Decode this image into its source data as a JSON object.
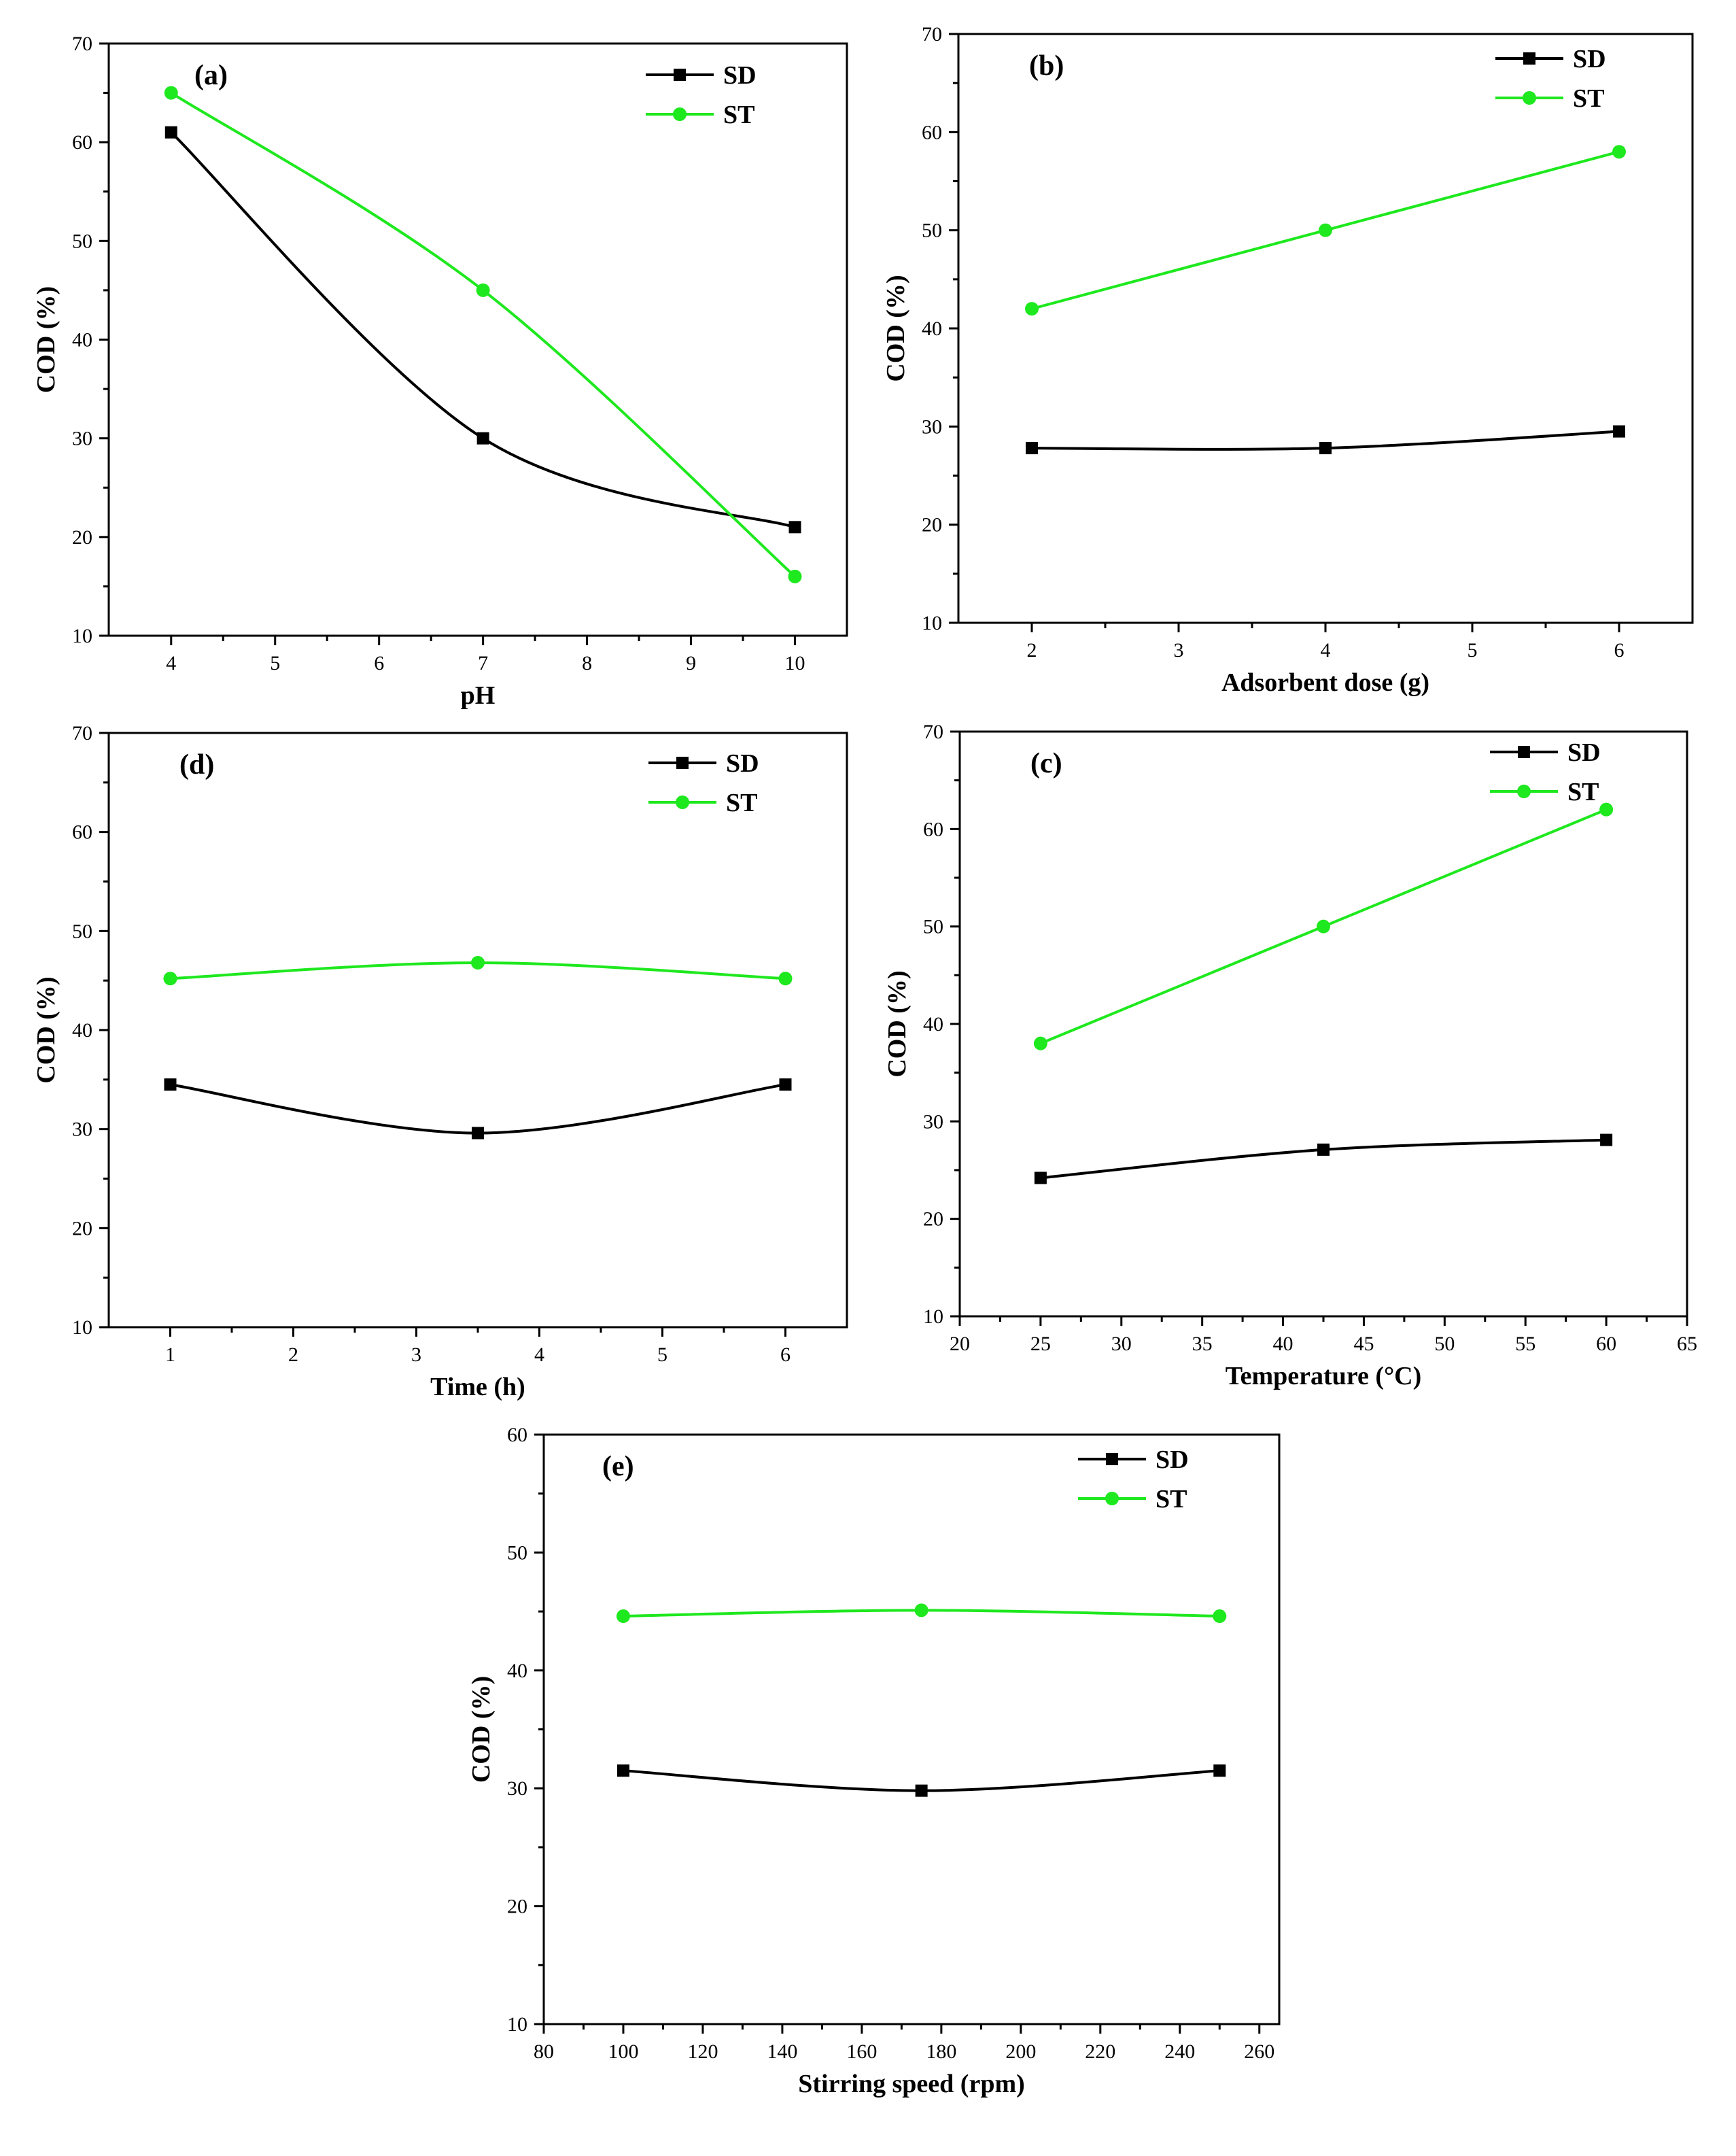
{
  "colors": {
    "sd": "#000000",
    "st": "#1ee81e",
    "axis": "#000000"
  },
  "chart_data": [
    {
      "panel": "(a)",
      "type": "line",
      "xlabel": "pH",
      "ylabel": "COD (%)",
      "xlim": [
        3.4,
        10.5
      ],
      "ylim": [
        10,
        70
      ],
      "xticks": [
        4,
        5,
        6,
        7,
        8,
        9,
        10
      ],
      "yticks": [
        10,
        20,
        30,
        40,
        50,
        60,
        70
      ],
      "x": [
        4,
        7,
        10
      ],
      "series": [
        {
          "name": "SD",
          "marker": "square",
          "values": [
            61,
            30,
            21
          ]
        },
        {
          "name": "ST",
          "marker": "circle",
          "values": [
            65,
            45,
            16
          ]
        }
      ],
      "legend": "top-right"
    },
    {
      "panel": "(b)",
      "type": "line",
      "xlabel": "Adsorbent dose (g)",
      "ylabel": "COD (%)",
      "xlim": [
        1.5,
        6.5
      ],
      "ylim": [
        10,
        70
      ],
      "xticks": [
        2,
        3,
        4,
        5,
        6
      ],
      "yticks": [
        10,
        20,
        30,
        40,
        50,
        60,
        70
      ],
      "x": [
        2,
        4,
        6
      ],
      "series": [
        {
          "name": "SD",
          "marker": "square",
          "values": [
            27.8,
            27.8,
            29.5
          ]
        },
        {
          "name": "ST",
          "marker": "circle",
          "values": [
            42,
            50,
            58
          ]
        }
      ],
      "legend": "top-right"
    },
    {
      "panel": "(d)",
      "type": "line",
      "xlabel": "Time (h)",
      "ylabel": "COD (%)",
      "xlim": [
        0.5,
        6.5
      ],
      "ylim": [
        10,
        70
      ],
      "xticks": [
        1,
        2,
        3,
        4,
        5,
        6
      ],
      "yticks": [
        10,
        20,
        30,
        40,
        50,
        60,
        70
      ],
      "x": [
        1,
        3.5,
        6
      ],
      "series": [
        {
          "name": "SD",
          "marker": "square",
          "values": [
            34.5,
            29.6,
            34.5
          ]
        },
        {
          "name": "ST",
          "marker": "circle",
          "values": [
            45.2,
            46.8,
            45.2
          ]
        }
      ],
      "legend": "top-right"
    },
    {
      "panel": "(c)",
      "type": "line",
      "xlabel": "Temperature (°C)",
      "ylabel": "COD (%)",
      "xlim": [
        20,
        65
      ],
      "ylim": [
        10,
        70
      ],
      "xticks": [
        20,
        25,
        30,
        35,
        40,
        45,
        50,
        55,
        60,
        65
      ],
      "yticks": [
        10,
        20,
        30,
        40,
        50,
        60,
        70
      ],
      "x": [
        25,
        42.5,
        60
      ],
      "series": [
        {
          "name": "SD",
          "marker": "square",
          "values": [
            24.2,
            27.1,
            28.1
          ]
        },
        {
          "name": "ST",
          "marker": "circle",
          "values": [
            38,
            50,
            62
          ]
        }
      ],
      "legend": "top-right"
    },
    {
      "panel": "(e)",
      "type": "line",
      "xlabel": "Stirring speed (rpm)",
      "ylabel": "COD (%)",
      "xlim": [
        80,
        265
      ],
      "ylim": [
        10,
        60
      ],
      "xticks": [
        80,
        100,
        120,
        140,
        160,
        180,
        200,
        220,
        240,
        260
      ],
      "yticks": [
        10,
        20,
        30,
        40,
        50,
        60
      ],
      "x": [
        100,
        175,
        250
      ],
      "series": [
        {
          "name": "SD",
          "marker": "square",
          "values": [
            31.5,
            29.8,
            31.5
          ]
        },
        {
          "name": "ST",
          "marker": "circle",
          "values": [
            44.6,
            45.1,
            44.6
          ]
        }
      ],
      "legend": "top-right"
    }
  ]
}
